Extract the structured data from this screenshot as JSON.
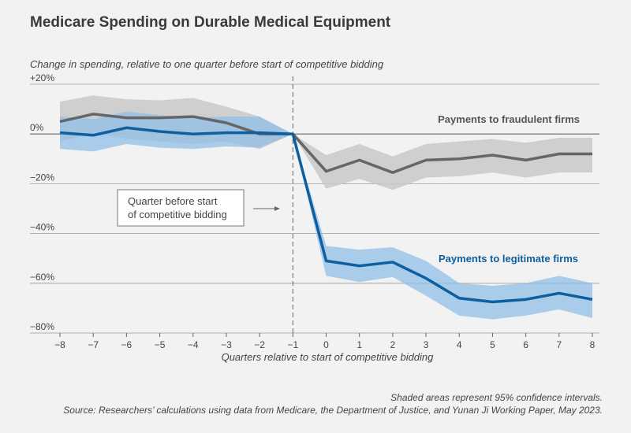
{
  "title": "Medicare Spending on Durable Medical Equipment",
  "note1": "Shaded areas represent 95% confidence intervals.",
  "note2": "Source: Researchers’ calculations using data from Medicare, the Department of Justice, and Yunan Ji Working Paper, May 2023.",
  "colors": {
    "fraud_line": "#666666",
    "fraud_band": "#c9c9c9",
    "legit_line": "#0d5fa0",
    "legit_band": "#8fbfe6",
    "grid": "#999999"
  },
  "chart_data": {
    "type": "line",
    "title": "Medicare Spending on Durable Medical Equipment",
    "ylabel": "Change in spending, relative to one quarter before start of competitive bidding",
    "xlabel": "Quarters relative to start of competitive bidding",
    "x": [
      -8,
      -7,
      -6,
      -5,
      -4,
      -3,
      -2,
      -1,
      0,
      1,
      2,
      3,
      4,
      5,
      6,
      7,
      8
    ],
    "xlim": [
      -8,
      8
    ],
    "ylim": [
      -80,
      20
    ],
    "yticks": [
      20,
      0,
      -20,
      -40,
      -60,
      -80
    ],
    "ytick_labels": [
      "+20%",
      "0%",
      "−20%",
      "−40%",
      "−60%",
      "−80%"
    ],
    "grid": true,
    "series": [
      {
        "name": "Payments to fraudulent firms",
        "values": [
          5,
          8,
          6.5,
          6.5,
          7,
          4.5,
          0,
          0,
          -15,
          -10.5,
          -15.5,
          -10.5,
          -10,
          -8.5,
          -10.5,
          -8,
          -8
        ],
        "lower": [
          -3,
          0.5,
          -2,
          -3,
          -4,
          -3,
          -6,
          0,
          -22,
          -18,
          -22.5,
          -17.5,
          -17,
          -15.5,
          -17.5,
          -15.5,
          -15.5
        ],
        "upper": [
          13,
          15.5,
          14,
          13.5,
          14.5,
          11,
          7,
          0,
          -8.5,
          -4,
          -9,
          -4,
          -3,
          -2,
          -3.5,
          -1.5,
          -1.5
        ]
      },
      {
        "name": "Payments to legitimate firms",
        "values": [
          0.5,
          -0.5,
          2.5,
          1,
          0,
          0.5,
          0.5,
          0,
          -51,
          -53,
          -51.5,
          -58,
          -66,
          -67.5,
          -66.5,
          -64,
          -66.5
        ],
        "lower": [
          -6,
          -7,
          -4,
          -5.5,
          -6,
          -5,
          -5.5,
          0,
          -57,
          -59.5,
          -57.5,
          -65,
          -73,
          -74.5,
          -73,
          -70.5,
          -74
        ],
        "upper": [
          7,
          6,
          9,
          7.5,
          6.5,
          7,
          7,
          0,
          -45,
          -46.5,
          -45.5,
          -51,
          -60,
          -61,
          -60,
          -57,
          -60
        ]
      }
    ],
    "annotations": {
      "vline_x": -1,
      "callout": [
        "Quarter before start",
        "of competitive bidding"
      ],
      "legend_fraud": "Payments to fraudulent firms",
      "legend_legit": "Payments to legitimate firms"
    }
  }
}
